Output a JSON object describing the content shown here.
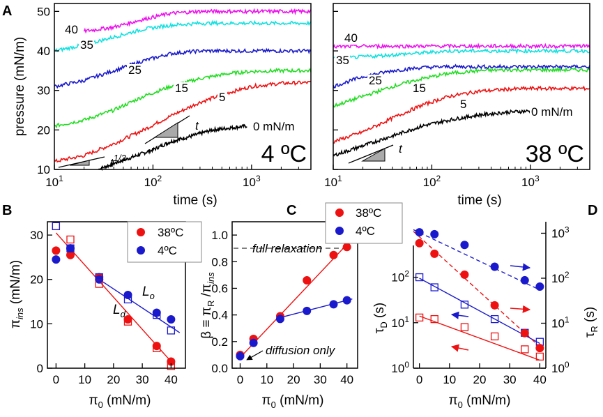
{
  "panel_labels": {
    "A": "A",
    "B": "B",
    "C": "C",
    "D": "D"
  },
  "chart_data": [
    {
      "id": "A-left",
      "type": "line",
      "title": "4 ºC",
      "xlabel": "time (s)",
      "ylabel": "pressure (mN/m)",
      "xscale": "log",
      "xlim": [
        10,
        4000
      ],
      "ylim": [
        10,
        52
      ],
      "xticks": [
        {
          "v": 10,
          "base": "10",
          "exp": "1"
        },
        {
          "v": 100,
          "base": "10",
          "exp": "2"
        },
        {
          "v": 1000,
          "base": "10",
          "exp": "3"
        }
      ],
      "yticks": [
        10,
        20,
        30,
        40,
        50
      ],
      "series": [
        {
          "name": "0 mN/m",
          "label": "0 mN/m",
          "color": "#000000",
          "x": [
            28,
            40,
            60,
            100,
            150,
            250,
            400,
            600,
            900
          ],
          "y": [
            10,
            11.5,
            13,
            15,
            17,
            18.5,
            20,
            20.5,
            21
          ]
        },
        {
          "name": "5",
          "label": "5",
          "color": "#ee1111",
          "x": [
            10,
            20,
            40,
            80,
            150,
            300,
            600,
            1000,
            2000,
            4000
          ],
          "y": [
            12,
            13.5,
            16.5,
            20,
            23.5,
            27,
            29.5,
            31,
            31.8,
            32
          ]
        },
        {
          "name": "15",
          "label": "15",
          "color": "#22dd22",
          "x": [
            10,
            20,
            40,
            80,
            150,
            300,
            600,
            1000,
            2000,
            4000
          ],
          "y": [
            21,
            22.5,
            25,
            28.5,
            31,
            33,
            34.3,
            34.8,
            35,
            35
          ]
        },
        {
          "name": "25",
          "label": "25",
          "color": "#1a1acc",
          "x": [
            10,
            20,
            40,
            80,
            150,
            300,
            600,
            1000,
            2000,
            4000
          ],
          "y": [
            31,
            32.5,
            35,
            37.5,
            39.3,
            40,
            40,
            40,
            40,
            40
          ]
        },
        {
          "name": "35",
          "label": "35",
          "color": "#11e0e0",
          "x": [
            10,
            20,
            40,
            80,
            150,
            300,
            600,
            1000,
            2000,
            4000
          ],
          "y": [
            40,
            41.5,
            43.5,
            45.5,
            46.5,
            47,
            47,
            47,
            47,
            47
          ]
        },
        {
          "name": "40",
          "label": "40",
          "color": "#ee11ee",
          "x": [
            20,
            40,
            80,
            150,
            300,
            600,
            1000,
            2000,
            4000
          ],
          "y": [
            45,
            46,
            48,
            49.5,
            50,
            50,
            50,
            50,
            50
          ]
        }
      ],
      "annotations": {
        "slope_half": "t",
        "slope_half_exp": "1/2",
        "slope_one": "t"
      }
    },
    {
      "id": "A-right",
      "type": "line",
      "title": "38 ºC",
      "xlabel": "time (s)",
      "ylabel": "pressure (mN/m)",
      "xscale": "log",
      "xlim": [
        10,
        4000
      ],
      "ylim": [
        10,
        52
      ],
      "xticks": [
        {
          "v": 10,
          "base": "10",
          "exp": "1"
        },
        {
          "v": 100,
          "base": "10",
          "exp": "2"
        },
        {
          "v": 1000,
          "base": "10",
          "exp": "3"
        }
      ],
      "yticks": [
        10,
        20,
        30,
        40,
        50
      ],
      "series": [
        {
          "name": "0 mN/m",
          "label": "0 mN/m",
          "color": "#000000",
          "x": [
            10,
            20,
            40,
            80,
            150,
            300,
            600,
            1000
          ],
          "y": [
            13.5,
            16,
            18.5,
            21,
            22.5,
            23.8,
            24.5,
            24.8
          ]
        },
        {
          "name": "5",
          "label": "5",
          "color": "#ee1111",
          "x": [
            10,
            20,
            40,
            80,
            150,
            300,
            600,
            1000,
            2000,
            4000
          ],
          "y": [
            17,
            19.5,
            23,
            26.3,
            28.5,
            29.8,
            30.3,
            30.5,
            30.5,
            30.5
          ]
        },
        {
          "name": "15",
          "label": "15",
          "color": "#22dd22",
          "x": [
            10,
            20,
            40,
            80,
            150,
            300,
            600,
            1000,
            2000,
            4000
          ],
          "y": [
            26,
            28.5,
            31,
            33,
            34.3,
            35,
            35.2,
            35.2,
            35.2,
            35.2
          ]
        },
        {
          "name": "25",
          "label": "25",
          "color": "#1a1acc",
          "x": [
            10,
            20,
            40,
            80,
            150,
            300,
            600,
            1000,
            2000,
            4000
          ],
          "y": [
            31,
            33.5,
            35,
            35.8,
            36,
            36,
            36,
            36,
            36,
            36
          ]
        },
        {
          "name": "35",
          "label": "35",
          "color": "#11e0e0",
          "x": [
            10,
            20,
            40,
            80,
            150,
            300,
            600,
            1000,
            2000,
            4000
          ],
          "y": [
            38,
            38.5,
            39,
            39.5,
            40,
            40,
            40,
            40,
            40,
            40
          ]
        },
        {
          "name": "40",
          "label": "40",
          "color": "#ee11ee",
          "x": [
            10,
            20,
            40,
            80,
            150,
            300,
            600,
            1000,
            2000,
            4000
          ],
          "y": [
            41,
            41.2,
            41.2,
            41.2,
            41.2,
            41.2,
            41.2,
            41.2,
            41.2,
            41.2
          ]
        }
      ],
      "annotations": {
        "slope_one": "t"
      }
    },
    {
      "id": "B",
      "type": "scatter",
      "xlabel": "π0 (mN/m)",
      "xlabel_main": "π",
      "xlabel_sub": "0",
      "xlabel_rest": " (mN/m)",
      "ylabel": "πins (mN/m)",
      "ylabel_main": "π",
      "ylabel_sub": "ins",
      "ylabel_rest": " (mN/m)",
      "xlim": [
        -3,
        45
      ],
      "ylim": [
        0,
        33
      ],
      "xticks": [
        0,
        10,
        20,
        30,
        40
      ],
      "yticks": [
        0,
        10,
        20,
        30
      ],
      "legend": [
        {
          "label": "38ºC",
          "color": "#ee1111"
        },
        {
          "label": "4ºC",
          "color": "#1a1acc"
        }
      ],
      "series": [
        {
          "name": "38ºC",
          "marker": "filled-circle",
          "color": "#ee1111",
          "x": [
            0,
            5,
            15,
            25,
            35,
            40
          ],
          "y": [
            26.5,
            25.5,
            20.5,
            11,
            5,
            1.5
          ]
        },
        {
          "name": "4ºC",
          "marker": "filled-circle",
          "color": "#1a1acc",
          "x": [
            0,
            5,
            15,
            25,
            35,
            40
          ],
          "y": [
            24.5,
            27,
            20,
            16.5,
            12.5,
            11
          ]
        },
        {
          "name": "38ºC open",
          "marker": "open-square",
          "color": "#ee1111",
          "x": [
            0,
            5,
            15,
            25,
            35,
            40
          ],
          "y": [
            32,
            29,
            19,
            10.5,
            4.5,
            0.5
          ]
        },
        {
          "name": "4ºC open",
          "marker": "open-square",
          "color": "#1a1acc",
          "x": [
            0,
            5,
            15,
            25,
            35,
            40
          ],
          "y": [
            32,
            27,
            20.5,
            15.5,
            12,
            8.5
          ]
        }
      ],
      "fits": [
        {
          "name": "Ld",
          "color": "#ee1111",
          "x": [
            0,
            40
          ],
          "y": [
            30.5,
            1.5
          ]
        },
        {
          "name": "Lo",
          "color": "#1a1acc",
          "x": [
            15,
            43
          ],
          "y": [
            20,
            8
          ]
        }
      ],
      "line_labels": [
        {
          "text": "L",
          "sub": "d"
        },
        {
          "text": "L",
          "sub": "o"
        }
      ]
    },
    {
      "id": "C",
      "type": "scatter",
      "xlabel": "π0 (mN/m)",
      "xlabel_main": "π",
      "xlabel_sub": "0",
      "xlabel_rest": " (mN/m)",
      "ylabel": "β ≡ πR /πins",
      "ylabel_a": "β ≡ π",
      "ylabel_b": "R",
      "ylabel_c": " /π",
      "ylabel_d": "ins",
      "xlim": [
        -3,
        44
      ],
      "ylim": [
        0,
        1.1
      ],
      "xticks": [
        0,
        10,
        20,
        30,
        40
      ],
      "yticks": [
        0.0,
        0.2,
        0.4,
        0.6,
        0.8,
        1.0
      ],
      "ytick_labels": [
        "0.0",
        "0.2",
        "0.4",
        "0.6",
        "0.8",
        "1.0"
      ],
      "series": [
        {
          "name": "38ºC",
          "marker": "filled-circle",
          "color": "#ee1111",
          "x": [
            0,
            5,
            15,
            25,
            35,
            40
          ],
          "y": [
            0.1,
            0.22,
            0.39,
            0.66,
            0.85,
            0.91
          ]
        },
        {
          "name": "4ºC",
          "marker": "filled-circle",
          "color": "#1a1acc",
          "x": [
            0,
            5,
            15,
            25,
            35,
            40
          ],
          "y": [
            0.09,
            0.19,
            0.37,
            0.43,
            0.48,
            0.51
          ]
        }
      ],
      "fits": [
        {
          "name": "38ºC fit",
          "color": "#ee1111",
          "x": [
            0,
            40
          ],
          "y": [
            0.08,
            0.93
          ]
        },
        {
          "name": "4ºC fit",
          "color": "#1a1acc",
          "x": [
            15,
            42
          ],
          "y": [
            0.38,
            0.52
          ]
        }
      ],
      "annotations": {
        "full_relaxation": "full relaxation",
        "diffusion_only": "diffusion only"
      }
    },
    {
      "id": "D",
      "type": "scatter",
      "xlabel": "π0 (mN/m)",
      "xlabel_main": "π",
      "xlabel_sub": "0",
      "xlabel_rest": " (mN/m)",
      "ylabel_left": "τD (s)",
      "ylabel_left_main": "τ",
      "ylabel_left_sub": "D",
      "ylabel_left_rest": " (s)",
      "ylabel_right": "τR (s)",
      "ylabel_right_main": "τ",
      "ylabel_right_sub": "R",
      "ylabel_right_rest": " (s)",
      "xlim": [
        -2,
        42
      ],
      "yscale": "log",
      "left_ylim": [
        1,
        500
      ],
      "right_ylim": [
        1,
        1800
      ],
      "xticks": [
        0,
        10,
        20,
        30,
        40
      ],
      "left_yticks": [
        {
          "v": 1,
          "base": "10",
          "exp": "0"
        },
        {
          "v": 10,
          "base": "10",
          "exp": "1"
        },
        {
          "v": 100,
          "base": "10",
          "exp": "2"
        }
      ],
      "right_yticks": [
        {
          "v": 1,
          "base": "10",
          "exp": "0"
        },
        {
          "v": 10,
          "base": "10",
          "exp": "1"
        },
        {
          "v": 100,
          "base": "10",
          "exp": "2"
        },
        {
          "v": 1000,
          "base": "10",
          "exp": "3"
        }
      ],
      "legend": [
        {
          "label": "38ºC",
          "color": "#ee1111"
        },
        {
          "label": "4ºC",
          "color": "#1a1acc"
        }
      ],
      "series": [
        {
          "name": "τD 4ºC",
          "marker": "open-square",
          "color": "#1a1acc",
          "axis": "left",
          "x": [
            0,
            5,
            15,
            25,
            35,
            40
          ],
          "y": [
            100,
            60,
            25,
            12,
            6,
            3.8
          ]
        },
        {
          "name": "τD 38ºC",
          "marker": "open-square",
          "color": "#ee1111",
          "axis": "left",
          "x": [
            0,
            5,
            15,
            25,
            35,
            40
          ],
          "y": [
            13,
            12,
            8,
            5,
            2.6,
            1.8
          ]
        },
        {
          "name": "τR 38ºC",
          "marker": "filled-circle",
          "color": "#ee1111",
          "axis": "right",
          "x": [
            0,
            5,
            15,
            25,
            35,
            40
          ],
          "y": [
            600,
            350,
            120,
            25,
            6,
            2.8
          ]
        },
        {
          "name": "τR 4ºC",
          "marker": "filled-circle",
          "color": "#1a1acc",
          "axis": "right",
          "x": [
            0,
            5,
            15,
            25,
            35,
            40
          ],
          "y": [
            1050,
            950,
            550,
            180,
            90,
            65
          ]
        }
      ],
      "fits": [
        {
          "name": "τD 4ºC fit",
          "color": "#1a1acc",
          "axis": "left",
          "dash": false,
          "x": [
            0,
            40
          ],
          "y": [
            95,
            3.5
          ]
        },
        {
          "name": "τD 38ºC fit",
          "color": "#ee1111",
          "axis": "left",
          "dash": false,
          "x": [
            0,
            40
          ],
          "y": [
            14,
            1.5
          ]
        },
        {
          "name": "τR 38ºC fit",
          "color": "#ee1111",
          "axis": "right",
          "dash": true,
          "x": [
            -2,
            40
          ],
          "y": [
            1100,
            3
          ]
        },
        {
          "name": "τR 4ºC fit",
          "color": "#1a1acc",
          "axis": "right",
          "dash": true,
          "x": [
            -2,
            40
          ],
          "y": [
            1200,
            55
          ]
        }
      ]
    }
  ]
}
